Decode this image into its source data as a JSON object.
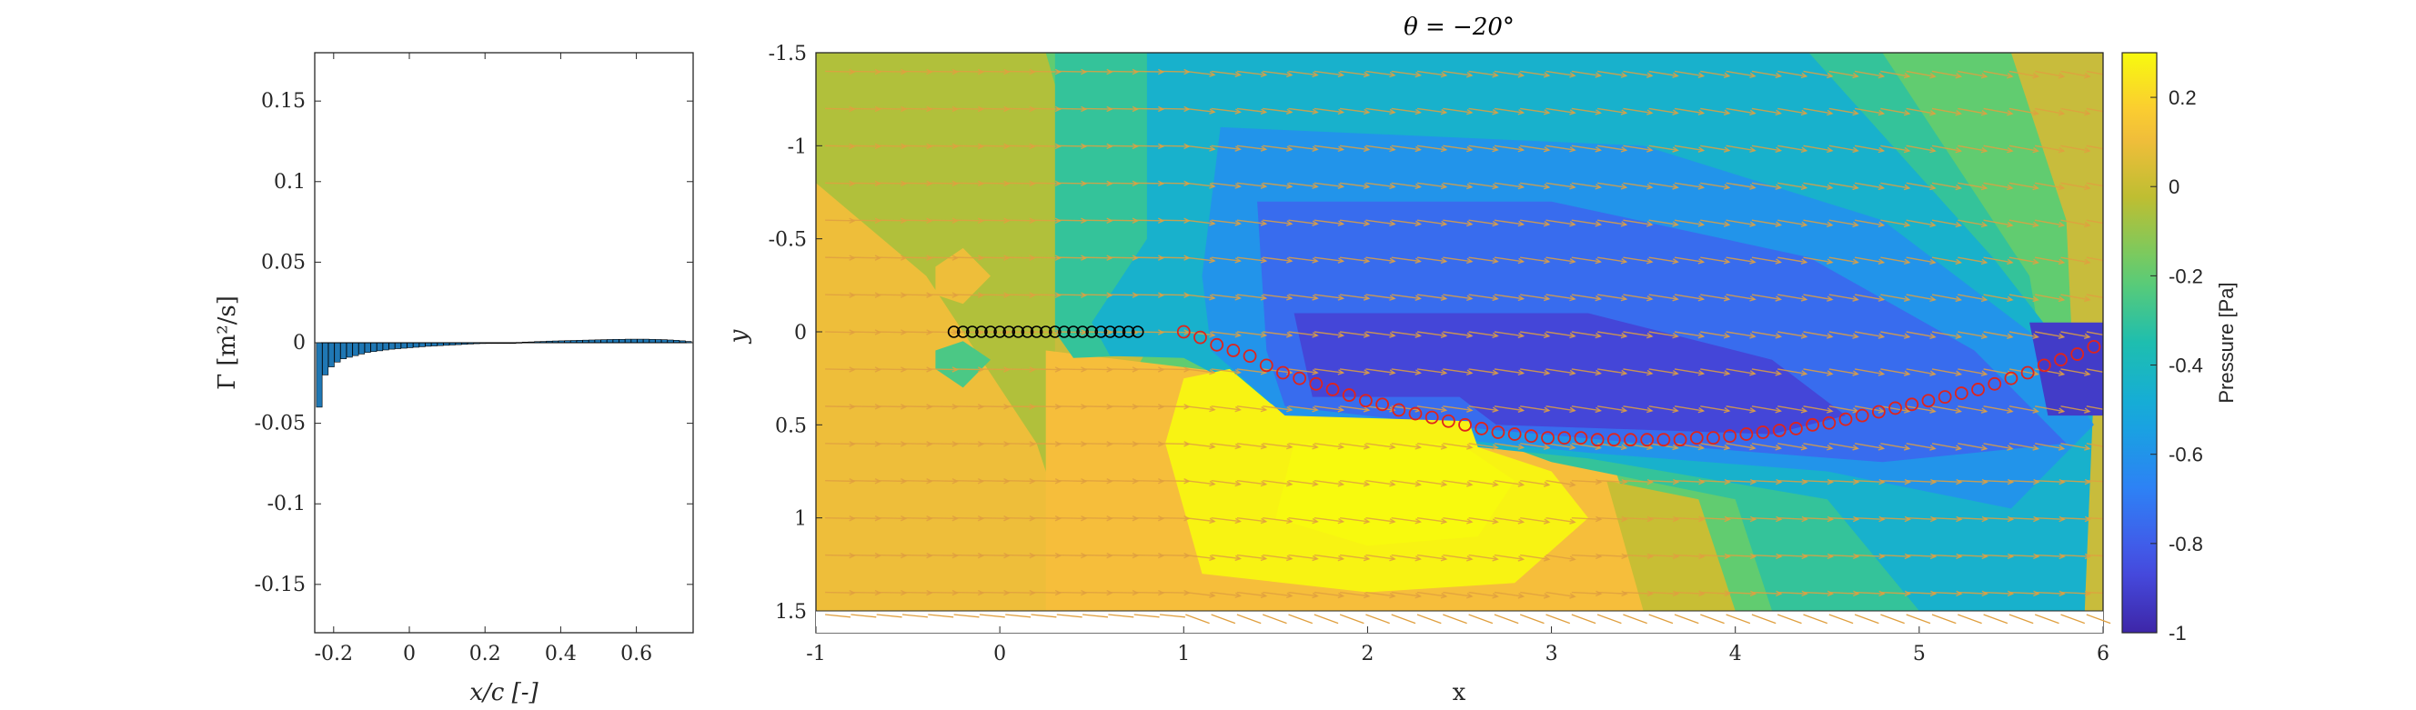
{
  "chart_data": [
    {
      "type": "bar",
      "xlabel": "x/c [-]",
      "ylabel": "Γ [m²/s]",
      "xlim": [
        -0.25,
        0.75
      ],
      "ylim": [
        -0.18,
        0.18
      ],
      "xticks": [
        "-0.2",
        "0",
        "0.2",
        "0.4",
        "0.6"
      ],
      "xtick_values": [
        -0.2,
        0,
        0.2,
        0.4,
        0.6
      ],
      "yticks": [
        "0.15",
        "0.1",
        "0.05",
        "0",
        "-0.05",
        "-0.1",
        "-0.15"
      ],
      "ytick_values": [
        0.15,
        0.1,
        0.05,
        0,
        -0.05,
        -0.1,
        -0.15
      ],
      "bar_color": "#1f77b4",
      "x": [
        -0.238,
        -0.222,
        -0.206,
        -0.19,
        -0.174,
        -0.158,
        -0.142,
        -0.126,
        -0.11,
        -0.094,
        -0.078,
        -0.062,
        -0.046,
        -0.03,
        -0.014,
        0.002,
        0.018,
        0.034,
        0.05,
        0.066,
        0.082,
        0.098,
        0.114,
        0.13,
        0.146,
        0.162,
        0.178,
        0.194,
        0.21,
        0.226,
        0.242,
        0.258,
        0.274,
        0.29,
        0.306,
        0.322,
        0.338,
        0.354,
        0.37,
        0.386,
        0.402,
        0.418,
        0.434,
        0.45,
        0.466,
        0.482,
        0.498,
        0.514,
        0.53,
        0.546,
        0.562,
        0.578,
        0.594,
        0.61,
        0.626,
        0.642,
        0.658,
        0.674,
        0.69,
        0.706,
        0.722,
        0.738
      ],
      "values": [
        -0.04,
        -0.02,
        -0.015,
        -0.012,
        -0.01,
        -0.009,
        -0.008,
        -0.007,
        -0.006,
        -0.0055,
        -0.005,
        -0.0045,
        -0.004,
        -0.0037,
        -0.0034,
        -0.0031,
        -0.0028,
        -0.0025,
        -0.0022,
        -0.002,
        -0.0018,
        -0.0016,
        -0.0014,
        -0.0012,
        -0.001,
        -0.0008,
        -0.0006,
        -0.0005,
        -0.0004,
        -0.0003,
        -0.0002,
        -0.0001,
        0.0,
        0.0002,
        0.0004,
        0.0005,
        0.0007,
        0.0008,
        0.001,
        0.0011,
        0.0012,
        0.0013,
        0.0014,
        0.0015,
        0.0016,
        0.0017,
        0.0018,
        0.0019,
        0.002,
        0.0021,
        0.0021,
        0.0022,
        0.0022,
        0.0022,
        0.0022,
        0.0021,
        0.002,
        0.0019,
        0.0017,
        0.0015,
        0.0012,
        0.0008
      ]
    },
    {
      "type": "heatmap",
      "title": "θ = −20°",
      "xlabel": "x",
      "ylabel": "y",
      "xlim": [
        -1,
        6
      ],
      "ylim": [
        -1.5,
        1.5
      ],
      "y_reversed": true,
      "xticks": [
        "-1",
        "0",
        "1",
        "2",
        "3",
        "4",
        "5",
        "6"
      ],
      "xtick_values": [
        -1,
        0,
        1,
        2,
        3,
        4,
        5,
        6
      ],
      "yticks": [
        "-1.5",
        "-1",
        "-0.5",
        "0",
        "0.5",
        "1",
        "1.5"
      ],
      "ytick_values": [
        -1.5,
        -1,
        -0.5,
        0,
        0.5,
        1,
        1.5
      ],
      "colorbar": {
        "label": "Pressure [Pa]",
        "range": [
          -1,
          0.3
        ],
        "ticks": [
          "0.2",
          "0",
          "-0.2",
          "-0.4",
          "-0.6",
          "-0.8",
          "-1"
        ],
        "tick_values": [
          0.2,
          0,
          -0.2,
          -0.4,
          -0.6,
          -0.8,
          -1
        ],
        "colormap": "parula"
      },
      "foil_points_x": [
        -0.25,
        -0.2,
        -0.15,
        -0.1,
        -0.05,
        0.0,
        0.05,
        0.1,
        0.15,
        0.2,
        0.25,
        0.3,
        0.35,
        0.4,
        0.45,
        0.5,
        0.55,
        0.6,
        0.65,
        0.7,
        0.75
      ],
      "foil_points_y": 0.0,
      "wake_x": [
        1.0,
        1.09,
        1.18,
        1.27,
        1.36,
        1.45,
        1.54,
        1.63,
        1.72,
        1.81,
        1.9,
        1.99,
        2.08,
        2.17,
        2.26,
        2.35,
        2.44,
        2.53,
        2.62,
        2.71,
        2.8,
        2.89,
        2.98,
        3.07,
        3.16,
        3.25,
        3.34,
        3.43,
        3.52,
        3.61,
        3.7,
        3.79,
        3.88,
        3.97,
        4.06,
        4.15,
        4.24,
        4.33,
        4.42,
        4.51,
        4.6,
        4.69,
        4.78,
        4.87,
        4.96,
        5.05,
        5.14,
        5.23,
        5.32,
        5.41,
        5.5,
        5.59,
        5.68,
        5.77,
        5.86,
        5.95
      ],
      "wake_y": [
        0.0,
        0.03,
        0.07,
        0.1,
        0.13,
        0.18,
        0.22,
        0.25,
        0.28,
        0.31,
        0.34,
        0.37,
        0.39,
        0.42,
        0.44,
        0.46,
        0.48,
        0.5,
        0.52,
        0.54,
        0.55,
        0.56,
        0.57,
        0.57,
        0.57,
        0.58,
        0.58,
        0.58,
        0.58,
        0.58,
        0.58,
        0.57,
        0.57,
        0.56,
        0.55,
        0.54,
        0.53,
        0.52,
        0.5,
        0.49,
        0.47,
        0.45,
        0.43,
        0.41,
        0.39,
        0.37,
        0.35,
        0.33,
        0.31,
        0.28,
        0.25,
        0.22,
        0.18,
        0.15,
        0.12,
        0.08
      ],
      "regions": [
        {
          "level": -0.05,
          "poly": [
            [
              -1,
              -1.5
            ],
            [
              0.3,
              -1.5
            ],
            [
              0.3,
              1.5
            ],
            [
              -1,
              1.5
            ]
          ]
        },
        {
          "level": 0.1,
          "poly": [
            [
              -1,
              -0.8
            ],
            [
              -0.4,
              -0.3
            ],
            [
              0.2,
              0.6
            ],
            [
              0.5,
              1.5
            ],
            [
              -1,
              1.5
            ]
          ]
        },
        {
          "level": -0.2,
          "poly": [
            [
              0.25,
              -1.5
            ],
            [
              5.5,
              -1.5
            ],
            [
              5.8,
              -0.6
            ],
            [
              5.9,
              1.5
            ],
            [
              0.25,
              1.5
            ],
            [
              0.5,
              0.6
            ],
            [
              0.8,
              0.1
            ],
            [
              0.6,
              -0.3
            ]
          ]
        },
        {
          "level": 0.12,
          "poly": [
            [
              0.25,
              0.1
            ],
            [
              1.5,
              0.25
            ],
            [
              3.3,
              0.6
            ],
            [
              3.6,
              1.5
            ],
            [
              0.25,
              1.5
            ]
          ]
        },
        {
          "level": 0.0,
          "poly": [
            [
              3.3,
              0.8
            ],
            [
              3.8,
              0.9
            ],
            [
              4.0,
              1.5
            ],
            [
              3.5,
              1.5
            ]
          ]
        },
        {
          "level": -0.3,
          "poly": [
            [
              0.3,
              -1.5
            ],
            [
              4.8,
              -1.5
            ],
            [
              5.6,
              -0.3
            ],
            [
              5.9,
              1.5
            ],
            [
              4.2,
              1.5
            ],
            [
              4.0,
              0.9
            ],
            [
              3.0,
              0.7
            ],
            [
              1.6,
              0.2
            ],
            [
              0.9,
              0.12
            ],
            [
              0.4,
              0.14
            ],
            [
              0.3,
              0.0
            ]
          ]
        },
        {
          "level": -0.45,
          "poly": [
            [
              0.8,
              -1.5
            ],
            [
              4.4,
              -1.5
            ],
            [
              5.4,
              -0.4
            ],
            [
              5.95,
              0.3
            ],
            [
              5.9,
              1.5
            ],
            [
              5.0,
              1.5
            ],
            [
              4.5,
              0.9
            ],
            [
              3.2,
              0.68
            ],
            [
              2.4,
              0.6
            ],
            [
              1.5,
              0.4
            ],
            [
              1.0,
              0.14
            ],
            [
              0.6,
              0.13
            ],
            [
              0.5,
              -0.05
            ],
            [
              0.8,
              -0.5
            ]
          ]
        },
        {
          "level": -0.6,
          "poly": [
            [
              1.2,
              -1.1
            ],
            [
              3.5,
              -1.0
            ],
            [
              4.8,
              -0.6
            ],
            [
              5.6,
              0.0
            ],
            [
              5.95,
              0.5
            ],
            [
              5.5,
              0.95
            ],
            [
              4.5,
              0.75
            ],
            [
              3.2,
              0.65
            ],
            [
              2.5,
              0.58
            ],
            [
              1.55,
              0.45
            ],
            [
              1.15,
              0.1
            ],
            [
              1.1,
              -0.3
            ]
          ]
        },
        {
          "level": -0.75,
          "poly": [
            [
              1.4,
              -0.7
            ],
            [
              3.0,
              -0.7
            ],
            [
              4.4,
              -0.4
            ],
            [
              5.3,
              0.1
            ],
            [
              5.8,
              0.6
            ],
            [
              4.8,
              0.7
            ],
            [
              3.5,
              0.6
            ],
            [
              2.6,
              0.52
            ],
            [
              1.55,
              0.4
            ],
            [
              1.45,
              0.1
            ]
          ]
        },
        {
          "level": -0.88,
          "poly": [
            [
              1.6,
              -0.1
            ],
            [
              3.2,
              -0.1
            ],
            [
              4.2,
              0.15
            ],
            [
              4.6,
              0.45
            ],
            [
              4.2,
              0.55
            ],
            [
              3.3,
              0.52
            ],
            [
              2.7,
              0.5
            ],
            [
              2.5,
              0.35
            ],
            [
              1.7,
              0.35
            ]
          ]
        },
        {
          "level": -0.92,
          "poly": [
            [
              5.6,
              -0.05
            ],
            [
              6.0,
              -0.05
            ],
            [
              6.0,
              0.45
            ],
            [
              5.7,
              0.45
            ]
          ]
        },
        {
          "level": 0.28,
          "poly": [
            [
              1.25,
              0.2
            ],
            [
              1.55,
              0.45
            ],
            [
              2.55,
              0.48
            ],
            [
              2.6,
              0.62
            ],
            [
              3.0,
              0.75
            ],
            [
              3.2,
              1.0
            ],
            [
              2.8,
              1.35
            ],
            [
              2.0,
              1.4
            ],
            [
              1.1,
              1.3
            ],
            [
              0.9,
              0.6
            ],
            [
              1.0,
              0.25
            ]
          ]
        },
        {
          "level": 0.3,
          "poly": [
            [
              1.6,
              0.6
            ],
            [
              2.5,
              0.6
            ],
            [
              2.8,
              0.8
            ],
            [
              2.6,
              1.1
            ],
            [
              2.0,
              1.15
            ],
            [
              1.5,
              1.0
            ]
          ]
        },
        {
          "level": 0.1,
          "poly": [
            [
              -0.35,
              -0.35
            ],
            [
              -0.2,
              -0.45
            ],
            [
              -0.05,
              -0.3
            ],
            [
              -0.2,
              -0.15
            ],
            [
              -0.35,
              -0.2
            ]
          ]
        },
        {
          "level": -0.25,
          "poly": [
            [
              -0.35,
              0.1
            ],
            [
              -0.2,
              0.05
            ],
            [
              -0.05,
              0.15
            ],
            [
              -0.2,
              0.3
            ],
            [
              -0.35,
              0.2
            ]
          ]
        }
      ]
    }
  ]
}
